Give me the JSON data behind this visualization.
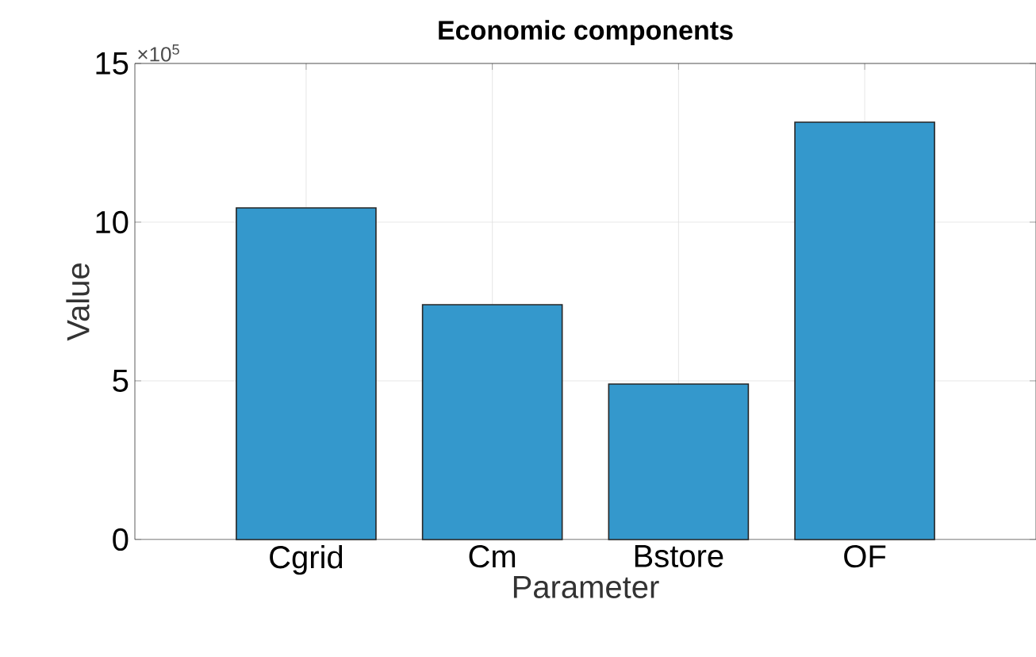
{
  "chart_data": {
    "type": "bar",
    "title": "Economic components",
    "xlabel": "Parameter",
    "ylabel": "Value",
    "categories": [
      "Cgrid",
      "Cm",
      "Bstore",
      "OF"
    ],
    "values": [
      10.45,
      7.4,
      4.9,
      13.15
    ],
    "color": "#3498cc",
    "ylim": [
      0,
      15
    ],
    "yticks": [
      0,
      5,
      10,
      15
    ],
    "annotations": [
      "×10$^{5}$"
    ],
    "grid": true
  }
}
